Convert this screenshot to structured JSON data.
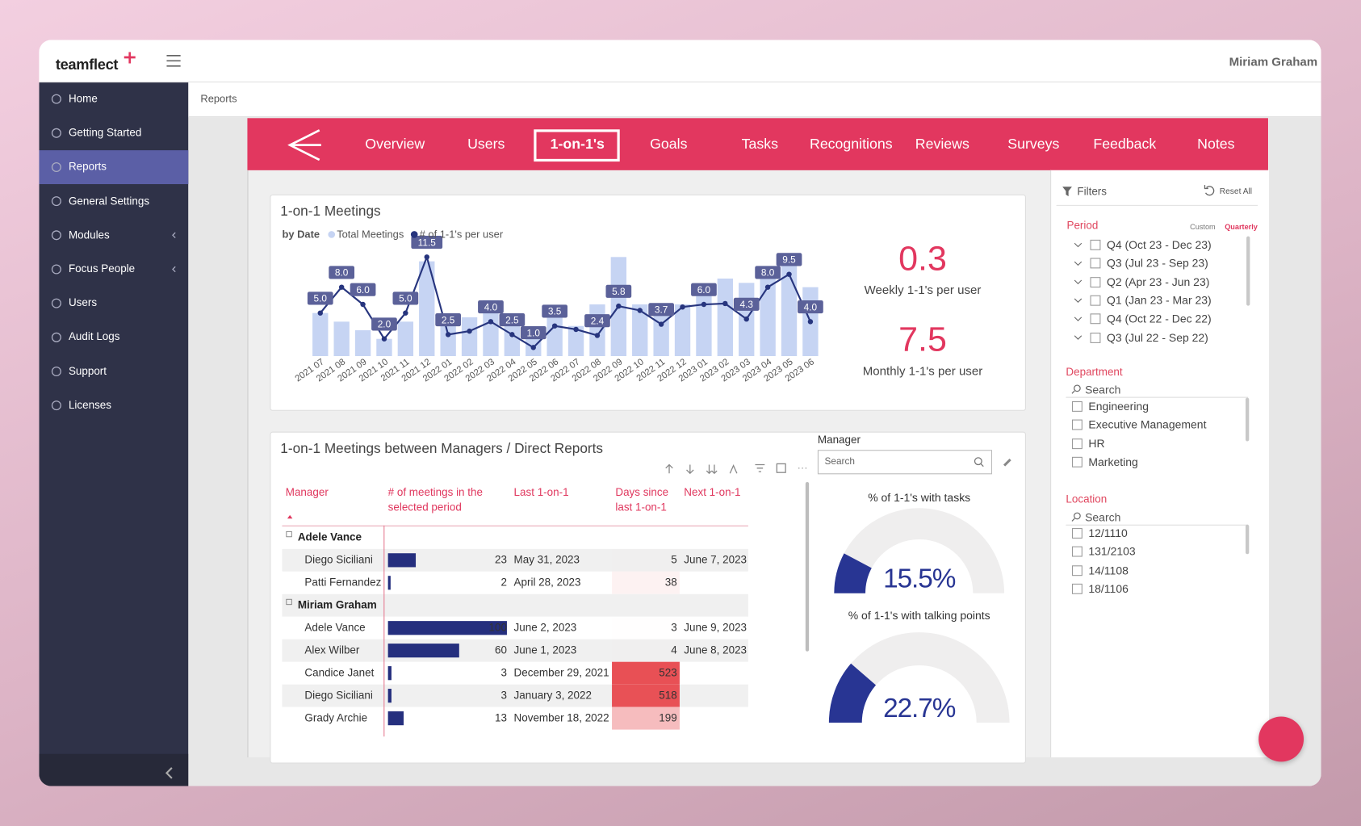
{
  "app": {
    "logo": "teamflect",
    "user": "Miriam Graham"
  },
  "sidebar": {
    "active": 2,
    "items": [
      {
        "label": "Home",
        "expandable": false
      },
      {
        "label": "Getting Started",
        "expandable": false
      },
      {
        "label": "Reports",
        "expandable": false
      },
      {
        "label": "General Settings",
        "expandable": false
      },
      {
        "label": "Modules",
        "expandable": true
      },
      {
        "label": "Focus People",
        "expandable": true
      },
      {
        "label": "Users",
        "expandable": false
      },
      {
        "label": "Audit Logs",
        "expandable": false
      },
      {
        "label": "Support",
        "expandable": false
      },
      {
        "label": "Licenses",
        "expandable": false
      }
    ]
  },
  "breadcrumb": "Reports",
  "tabs": {
    "active": 2,
    "items": [
      "Overview",
      "Users",
      "1-on-1's",
      "Goals",
      "Tasks",
      "Recognitions",
      "Reviews",
      "Surveys",
      "Feedback",
      "Notes"
    ]
  },
  "chart_data": {
    "type": "combo",
    "title": "1-on-1 Meetings",
    "subtitle": "by Date",
    "categories": [
      "2021 07",
      "2021 08",
      "2021 09",
      "2021 10",
      "2021 11",
      "2021 12",
      "2022 01",
      "2022 02",
      "2022 03",
      "2022 04",
      "2022 05",
      "2022 06",
      "2022 07",
      "2022 08",
      "2022 09",
      "2022 10",
      "2022 11",
      "2022 12",
      "2023 01",
      "2023 02",
      "2023 03",
      "2023 04",
      "2023 05",
      "2023 06"
    ],
    "series": [
      {
        "name": "Total Meetings",
        "color": "#c6d4f3",
        "values": [
          10,
          8,
          6,
          4,
          8,
          22,
          7,
          9,
          13,
          8,
          4,
          9,
          7,
          12,
          23,
          12,
          10,
          12,
          14,
          18,
          17,
          19,
          21,
          16
        ]
      },
      {
        "name": "# of 1-1's per user",
        "color": "#27357e",
        "axis": "y2",
        "values": [
          5.0,
          8.0,
          6.0,
          2.0,
          5.0,
          11.5,
          2.5,
          2.9,
          4.0,
          2.5,
          1.0,
          3.5,
          3.1,
          2.4,
          5.8,
          5.3,
          3.7,
          5.7,
          6.0,
          6.1,
          4.3,
          8.0,
          9.5,
          4.0
        ],
        "value_labels": [
          "5.0",
          "8.0",
          "6.0",
          "2.0",
          "5.0",
          "11.5",
          "2.5",
          null,
          "4.0",
          "2.5",
          "1.0",
          "3.5",
          null,
          "2.4",
          "5.8",
          null,
          "3.7",
          null,
          "6.0",
          null,
          "4.3",
          "8.0",
          "9.5",
          "4.0"
        ]
      }
    ],
    "ylim": [
      0,
      25
    ],
    "y2lim": [
      0,
      12.5
    ]
  },
  "kpis": [
    {
      "value": 0.3,
      "label": "Weekly 1-1's per user"
    },
    {
      "value": 7.5,
      "label": "Monthly 1-1's per user"
    }
  ],
  "table": {
    "title": "1-on-1 Meetings between Managers / Direct Reports",
    "columns": [
      "Manager",
      "# of meetings in the selected period",
      "Last 1-on-1",
      "Days since last 1-on-1",
      "Next 1-on-1"
    ],
    "groups": [
      {
        "manager": "Adele Vance",
        "rows": [
          {
            "name": "Diego Siciliani",
            "meetings": 23,
            "last": "May 31, 2023",
            "days": 5,
            "next": "June 7, 2023"
          },
          {
            "name": "Patti Fernandez",
            "meetings": 2,
            "last": "April 28, 2023",
            "days": 38,
            "next": null
          }
        ]
      },
      {
        "manager": "Miriam Graham",
        "rows": [
          {
            "name": "Adele Vance",
            "meetings": 100,
            "last": "June 2, 2023",
            "days": 3,
            "next": "June 9, 2023"
          },
          {
            "name": "Alex Wilber",
            "meetings": 60,
            "last": "June 1, 2023",
            "days": 4,
            "next": "June 8, 2023"
          },
          {
            "name": "Candice Janet",
            "meetings": 3,
            "last": "December 29, 2021",
            "days": 523,
            "next": null
          },
          {
            "name": "Diego Siciliani",
            "meetings": 3,
            "last": "January 3, 2022",
            "days": 518,
            "next": null
          },
          {
            "name": "Grady Archie",
            "meetings": 13,
            "last": "November 18, 2022",
            "days": 199,
            "next": null
          }
        ]
      }
    ]
  },
  "manager_slicer": {
    "label": "Manager",
    "placeholder": "Search"
  },
  "gauges": {
    "range": [
      0,
      100
    ],
    "color": "#283593",
    "items": [
      {
        "title": "% of 1-1's with tasks",
        "value": 15.5,
        "value_label": "15.5%"
      },
      {
        "title": "% of 1-1's with talking points",
        "value": 22.7,
        "value_label": "22.7%"
      }
    ]
  },
  "filters": {
    "title": "Filters",
    "reset": "Reset All",
    "period": {
      "title": "Period",
      "modes": [
        "Custom",
        "Quarterly"
      ],
      "active_mode": 1,
      "items": [
        "Q4 (Oct 23 - Dec 23)",
        "Q3 (Jul 23 - Sep 23)",
        "Q2 (Apr 23 - Jun 23)",
        "Q1 (Jan 23 - Mar 23)",
        "Q4 (Oct 22 - Dec 22)",
        "Q3 (Jul 22 - Sep 22)"
      ]
    },
    "department": {
      "title": "Department",
      "search": "Search",
      "items": [
        "Engineering",
        "Executive Management",
        "HR",
        "Marketing"
      ]
    },
    "location": {
      "title": "Location",
      "search": "Search",
      "items": [
        "12/1110",
        "131/2103",
        "14/1108",
        "18/1106"
      ]
    }
  }
}
